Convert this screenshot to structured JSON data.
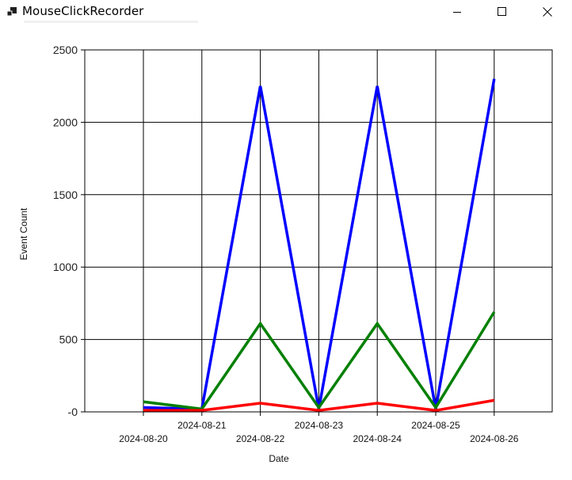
{
  "window": {
    "title": "MouseClickRecorder",
    "icons": {
      "app": "app-icon",
      "minimize": "minimize-icon",
      "maximize": "maximize-icon",
      "close": "close-icon"
    }
  },
  "chart_data": {
    "type": "line",
    "xlabel": "Date",
    "ylabel": "Event Count",
    "ylim": [
      0,
      2500
    ],
    "y_ticks": [
      {
        "value": 0,
        "label": "-0"
      },
      {
        "value": 500,
        "label": "500"
      },
      {
        "value": 1000,
        "label": "1000"
      },
      {
        "value": 1500,
        "label": "1500"
      },
      {
        "value": 2000,
        "label": "2000"
      },
      {
        "value": 2500,
        "label": "2500"
      }
    ],
    "x": [
      "2024-08-20",
      "2024-08-21",
      "2024-08-22",
      "2024-08-23",
      "2024-08-24",
      "2024-08-25",
      "2024-08-26"
    ],
    "grid": true,
    "legend": "none",
    "series": [
      {
        "color": "#0000ff",
        "values": [
          30,
          20,
          2250,
          20,
          2250,
          20,
          2300
        ]
      },
      {
        "color": "#008000",
        "values": [
          70,
          20,
          610,
          30,
          610,
          30,
          690
        ]
      },
      {
        "color": "#ff0000",
        "values": [
          10,
          10,
          60,
          10,
          60,
          10,
          80
        ]
      }
    ]
  }
}
